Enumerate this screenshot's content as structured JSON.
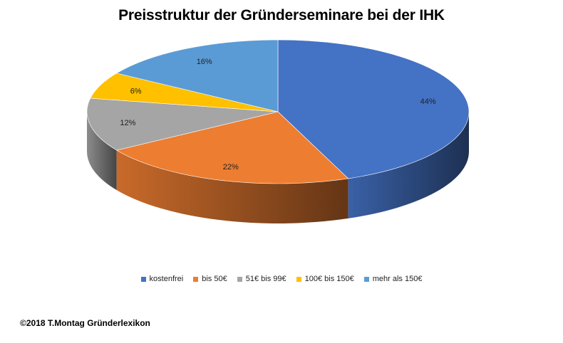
{
  "chart_data": {
    "type": "pie",
    "title": "Preisstruktur der Gründerseminare bei der IHK",
    "three_d": true,
    "legend_position": "bottom",
    "slices": [
      {
        "name": "kostenfrei",
        "value": 44,
        "label": "44%",
        "color": "#4472C4"
      },
      {
        "name": "bis 50€",
        "value": 22,
        "label": "22%",
        "color": "#ED7D31"
      },
      {
        "name": "51€ bis 99€",
        "value": 12,
        "label": "12%",
        "color": "#A5A5A5"
      },
      {
        "name": "100€ bis 150€",
        "value": 6,
        "label": "6%",
        "color": "#FFC000"
      },
      {
        "name": "mehr als 150€",
        "value": 16,
        "label": "16%",
        "color": "#5B9BD5"
      }
    ]
  },
  "footer": {
    "copyright": "©2018 T.Montag Gründerlexikon"
  }
}
